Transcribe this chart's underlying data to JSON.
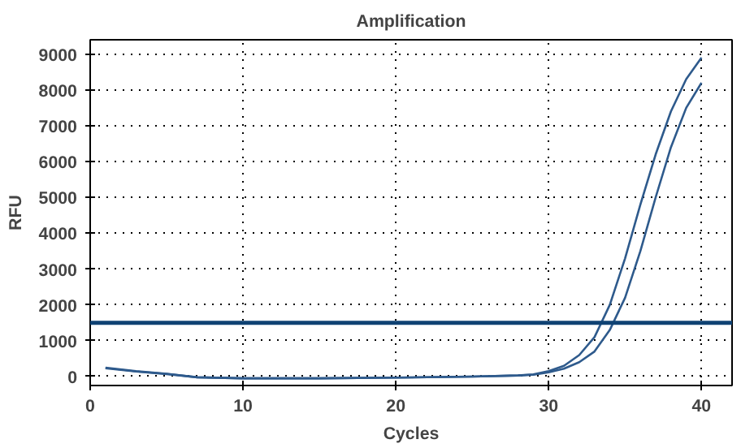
{
  "chart_data": {
    "type": "line",
    "title": "Amplification",
    "xlabel": "Cycles",
    "ylabel": "RFU",
    "x": [
      1,
      3,
      5,
      7,
      10,
      15,
      20,
      25,
      28,
      29,
      30,
      31,
      32,
      33,
      34,
      35,
      36,
      37,
      38,
      39,
      40
    ],
    "series": [
      {
        "color": "#2e5a8c",
        "values": [
          250,
          150,
          80,
          -20,
          -50,
          -50,
          -30,
          0,
          30,
          60,
          150,
          300,
          600,
          1100,
          2000,
          3300,
          4800,
          6200,
          7400,
          8300,
          8900
        ]
      },
      {
        "color": "#2e5a8c",
        "values": [
          230,
          140,
          70,
          -20,
          -50,
          -50,
          -30,
          0,
          30,
          50,
          120,
          220,
          400,
          700,
          1300,
          2200,
          3500,
          5000,
          6400,
          7500,
          8200
        ]
      }
    ],
    "ref_lines": [
      {
        "axis": "y",
        "value": 1500,
        "color": "#0f4273"
      }
    ],
    "xlim": [
      0,
      42
    ],
    "ylim": [
      -250,
      9400
    ],
    "xticks": [
      0,
      10,
      20,
      30,
      40
    ],
    "yticks": [
      0,
      1000,
      2000,
      3000,
      4000,
      5000,
      6000,
      7000,
      8000,
      9000
    ],
    "grid": true,
    "marker": "none",
    "line_style": "solid"
  }
}
